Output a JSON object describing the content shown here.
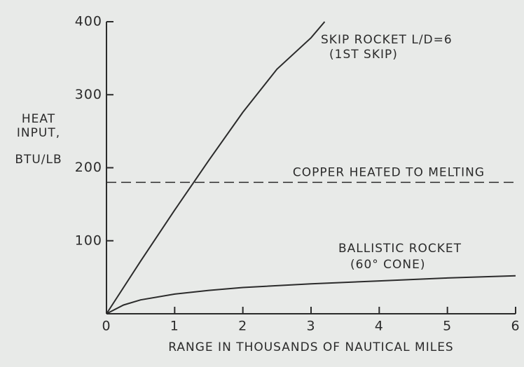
{
  "chart_data": {
    "type": "line",
    "y_label_lines": [
      "HEAT",
      "INPUT,",
      "BTU/LB"
    ],
    "x_label": "RANGE IN THOUSANDS OF NAUTICAL MILES",
    "xlim": [
      0,
      6
    ],
    "ylim": [
      0,
      400
    ],
    "xticks": [
      0,
      1,
      2,
      3,
      4,
      5,
      6
    ],
    "yticks": [
      100,
      200,
      300,
      400
    ],
    "color": "#2b2b2b",
    "series": [
      {
        "name": "SKIP ROCKET L/D=6",
        "note": "(1ST SKIP)",
        "x": [
          0,
          0.5,
          1,
          1.5,
          2,
          2.5,
          3,
          3.2
        ],
        "values": [
          0,
          72,
          142,
          210,
          276,
          335,
          378,
          400
        ]
      },
      {
        "name": "BALLISTIC ROCKET",
        "note": "(60° CONE)",
        "x": [
          0,
          0.25,
          0.5,
          1,
          1.5,
          2,
          3,
          4,
          5,
          6
        ],
        "values": [
          0,
          12,
          19,
          27,
          32,
          36,
          41,
          45,
          49,
          52
        ]
      }
    ],
    "reference_line": {
      "value": 180,
      "label": "COPPER HEATED TO MELTING"
    }
  }
}
